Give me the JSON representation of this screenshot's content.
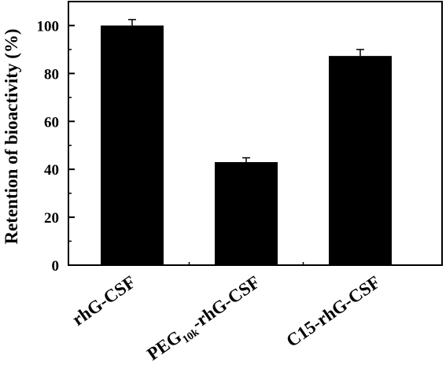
{
  "chart_data": {
    "type": "bar",
    "categories": [
      {
        "main": "rhG-CSF",
        "pre": "",
        "sub": "",
        "post": ""
      },
      {
        "main": "",
        "pre": "PEG",
        "sub": "10k",
        "post": "-rhG-CSF"
      },
      {
        "main": "C15-rhG-CSF",
        "pre": "",
        "sub": "",
        "post": ""
      }
    ],
    "values": [
      100,
      43,
      87.3
    ],
    "errors": [
      2.5,
      1.8,
      2.7
    ],
    "ylabel": "Retention of bioactivity (%)",
    "xlabel": "",
    "ylim": [
      0,
      110
    ],
    "yticks": [
      0,
      20,
      40,
      60,
      80,
      100
    ],
    "bar_color": "#000000",
    "grid": false
  }
}
